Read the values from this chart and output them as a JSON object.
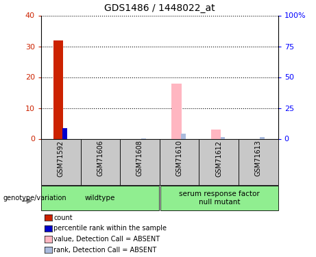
{
  "title": "GDS1486 / 1448022_at",
  "samples": [
    "GSM71592",
    "GSM71606",
    "GSM71608",
    "GSM71610",
    "GSM71612",
    "GSM71613"
  ],
  "ylim_left": [
    0,
    40
  ],
  "ylim_right": [
    0,
    100
  ],
  "yticks_left": [
    0,
    10,
    20,
    30,
    40
  ],
  "yticks_right": [
    0,
    25,
    50,
    75,
    100
  ],
  "yticklabels_right": [
    "0",
    "25",
    "50",
    "75",
    "100%"
  ],
  "count_values": [
    32,
    0,
    0,
    0,
    0,
    0
  ],
  "rank_values": [
    8.5,
    0,
    0,
    0,
    0,
    0
  ],
  "absent_value_values": [
    0,
    0,
    0,
    18,
    3,
    0
  ],
  "absent_rank_values": [
    0,
    0,
    0.5,
    4,
    1.5,
    1.5
  ],
  "absent_value_color": "#FFB6C1",
  "absent_rank_color": "#AABBDD",
  "count_color": "#CC2200",
  "rank_color": "#0000CC",
  "groups": [
    {
      "label": "wildtype",
      "color": "#90EE90",
      "start": 0,
      "end": 2
    },
    {
      "label": "serum response factor\nnull mutant",
      "color": "#90EE90",
      "start": 3,
      "end": 5
    }
  ],
  "group_label": "genotype/variation",
  "sample_box_color": "#C8C8C8",
  "background_color": "#ffffff",
  "legend_items": [
    {
      "label": "count",
      "color": "#CC2200"
    },
    {
      "label": "percentile rank within the sample",
      "color": "#0000CC"
    },
    {
      "label": "value, Detection Call = ABSENT",
      "color": "#FFB6C1"
    },
    {
      "label": "rank, Detection Call = ABSENT",
      "color": "#AABBDD"
    }
  ]
}
